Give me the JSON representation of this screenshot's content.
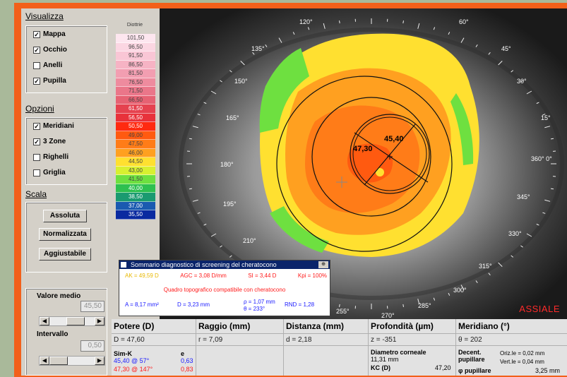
{
  "sidebar": {
    "visualizza_title": "Visualizza",
    "visualizza": [
      {
        "label": "Mappa",
        "checked": true
      },
      {
        "label": "Occhio",
        "checked": true
      },
      {
        "label": "Anelli",
        "checked": false
      },
      {
        "label": "Pupilla",
        "checked": true
      }
    ],
    "opzioni_title": "Opzioni",
    "opzioni": [
      {
        "label": "Meridiani",
        "checked": true
      },
      {
        "label": "3 Zone",
        "checked": true
      },
      {
        "label": "Righelli",
        "checked": false
      },
      {
        "label": "Griglia",
        "checked": false
      }
    ],
    "scala_title": "Scala",
    "scala_buttons": [
      "Assoluta",
      "Normalizzata",
      "Aggiustabile"
    ],
    "valore_medio_label": "Valore medio",
    "valore_medio_value": "45,50",
    "intervallo_label": "Intervallo",
    "intervallo_value": "0,50",
    "scroll_left": "◀",
    "scroll_right": "▶"
  },
  "scale": {
    "title": "Diottrie",
    "entries": [
      {
        "label": "101,50",
        "color": "#fde6ef"
      },
      {
        "label": "96,50",
        "color": "#fbd6e2"
      },
      {
        "label": "91,50",
        "color": "#f9c6d5"
      },
      {
        "label": "86,50",
        "color": "#f6b3c4"
      },
      {
        "label": "81,50",
        "color": "#f29eb1"
      },
      {
        "label": "76,50",
        "color": "#ee8b9e"
      },
      {
        "label": "71,50",
        "color": "#ea7689"
      },
      {
        "label": "66,50",
        "color": "#e66273"
      },
      {
        "label": "61,50",
        "color": "#e5424f"
      },
      {
        "label": "56,50",
        "color": "#e8323b"
      },
      {
        "label": "50,50",
        "color": "#ff2a10"
      },
      {
        "label": "49,00",
        "color": "#ff5a10"
      },
      {
        "label": "47,50",
        "color": "#ff7c18"
      },
      {
        "label": "46,00",
        "color": "#ffa020"
      },
      {
        "label": "44,50",
        "color": "#ffe030"
      },
      {
        "label": "43,00",
        "color": "#d8f030"
      },
      {
        "label": "41,50",
        "color": "#6ee040"
      },
      {
        "label": "40,00",
        "color": "#2ec050"
      },
      {
        "label": "38,50",
        "color": "#1a9a70"
      },
      {
        "label": "37,00",
        "color": "#1a5ab0"
      },
      {
        "label": "35,50",
        "color": "#0a2aa0"
      }
    ]
  },
  "map": {
    "angles": [
      "120°",
      "60°",
      "135°",
      "45°",
      "150°",
      "30°",
      "165°",
      "15°",
      "180°",
      "360° 0°",
      "195°",
      "345°",
      "210°",
      "330°",
      "315°",
      "300°",
      "285°",
      "270°",
      "255°"
    ],
    "marker_top": "45,40",
    "marker_left": "47,30",
    "mode_label": "ASSIALE"
  },
  "popup": {
    "title": "Sommario diagnostico di screening del cheratocono",
    "close": "⊕",
    "ak": "AK = 49,59 D",
    "agc": "AGC = 3,08 D/mm",
    "si": "SI = 3,44 D",
    "kpi": "Kpi = 100%",
    "verdict": "Quadro topografico compatibile con cheratocono",
    "area": "A = 8,17 mm²",
    "d": "D = 3,23 mm",
    "rho": "ρ = 1,07 mm",
    "theta": "θ = 233°",
    "rnd": "RND = 1,28"
  },
  "table": {
    "potere_h": "Potere (D)",
    "potere_v": "D = 47,60",
    "raggio_h": "Raggio (mm)",
    "raggio_v": "r = 7,09",
    "distanza_h": "Distanza (mm)",
    "distanza_v": "d = 2,18",
    "profondita_h": "Profondità (µm)",
    "profondita_v": "z = -351",
    "meridiano_h": "Meridiano (°)",
    "meridiano_v": "θ = 202",
    "simk_label": "Sim-K",
    "e_label": "e",
    "simk1": "45,40 @ 57°",
    "e1": "0,63",
    "simk2": "47,30 @ 147°",
    "e2": "0,83",
    "diam_label": "Diametro corneale",
    "diam_value": "11,31 mm",
    "kc_label": "KC (D)",
    "kc_value": "47,20",
    "decent_label": "Decent.",
    "pupillare_label": "pupillare",
    "oriz": "Oriz.le = 0,02 mm",
    "vert": "Vert.le = 0,04 mm",
    "phi_label": "φ pupillare",
    "phi_value": "3,25 mm"
  }
}
